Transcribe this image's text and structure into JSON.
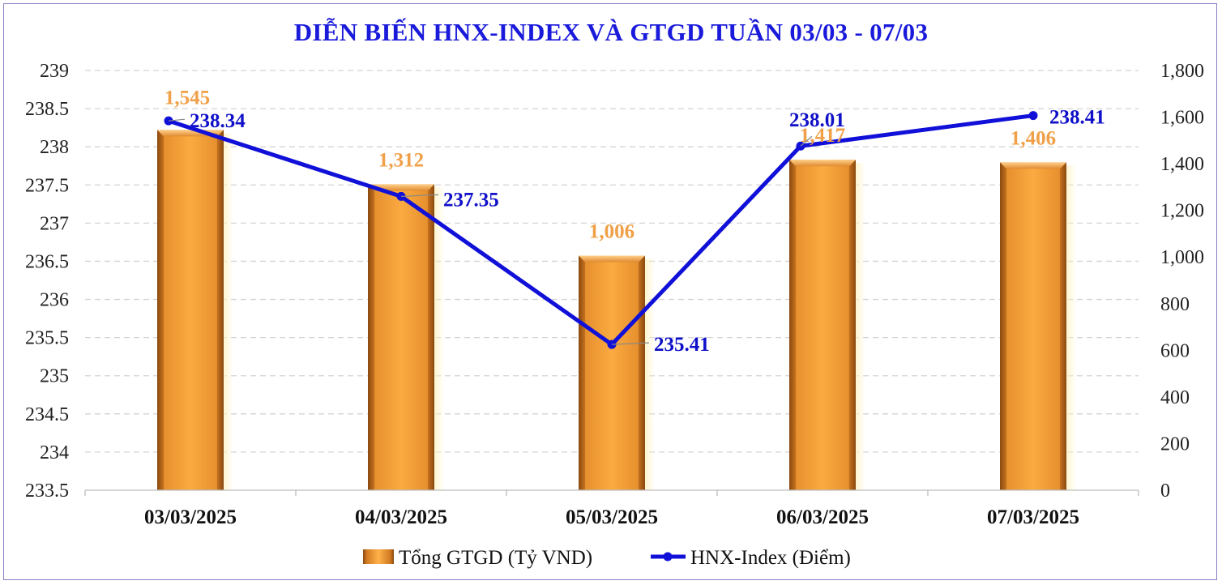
{
  "chart_data": {
    "type": "bar+line",
    "title": "DIỄN BIẾN HNX-INDEX VÀ GTGD TUẦN 03/03 -  07/03",
    "categories": [
      "03/03/2025",
      "04/03/2025",
      "05/03/2025",
      "06/03/2025",
      "07/03/2025"
    ],
    "series": [
      {
        "name": "Tổng GTGD (Tỷ VND)",
        "type": "bar",
        "axis": "right",
        "values": [
          1545,
          1312,
          1006,
          1417,
          1406
        ],
        "labels": [
          "1,545",
          "1,312",
          "1,006",
          "1,417",
          "1,406"
        ],
        "color": "#f5a53c"
      },
      {
        "name": "HNX-Index (Điểm)",
        "type": "line",
        "axis": "left",
        "values": [
          238.34,
          237.35,
          235.41,
          238.01,
          238.41
        ],
        "labels": [
          "238.34",
          "237.35",
          "235.41",
          "238.01",
          "238.41"
        ],
        "color": "#1010d8"
      }
    ],
    "y_left": {
      "min": 233.5,
      "max": 239,
      "ticks": [
        "233.5",
        "234",
        "234.5",
        "235",
        "235.5",
        "236",
        "236.5",
        "237",
        "237.5",
        "238",
        "238.5",
        "239"
      ]
    },
    "y_right": {
      "min": 0,
      "max": 1800,
      "ticks": [
        "0",
        "200",
        "400",
        "600",
        "800",
        "1,000",
        "1,200",
        "1,400",
        "1,600",
        "1,800"
      ]
    },
    "grid": "horizontal-dashed",
    "legend_position": "bottom-center"
  }
}
